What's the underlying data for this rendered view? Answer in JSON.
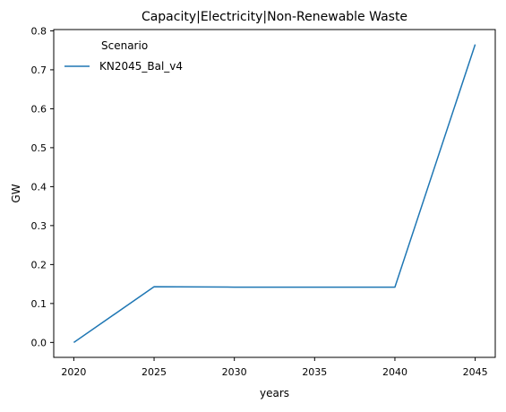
{
  "chart_data": {
    "type": "line",
    "title": "Capacity|Electricity|Non-Renewable Waste",
    "xlabel": "years",
    "ylabel": "GW",
    "x": [
      2020,
      2025,
      2030,
      2035,
      2040,
      2045
    ],
    "xlim": [
      2018.75,
      2046.25
    ],
    "ylim": [
      -0.0383,
      0.8033
    ],
    "xticks": [
      2020,
      2025,
      2030,
      2035,
      2040,
      2045
    ],
    "yticks": [
      0.0,
      0.1,
      0.2,
      0.3,
      0.4,
      0.5,
      0.6,
      0.7,
      0.8
    ],
    "ytick_labels": [
      "0.0",
      "0.1",
      "0.2",
      "0.3",
      "0.4",
      "0.5",
      "0.6",
      "0.7",
      "0.8"
    ],
    "grid": false,
    "legend": {
      "title": "Scenario",
      "placement": "upper-left"
    },
    "series": [
      {
        "name": "KN2045_Bal_v4",
        "color": "#1f77b4",
        "values": [
          0.0,
          0.143,
          0.142,
          0.142,
          0.142,
          0.765
        ]
      }
    ]
  }
}
